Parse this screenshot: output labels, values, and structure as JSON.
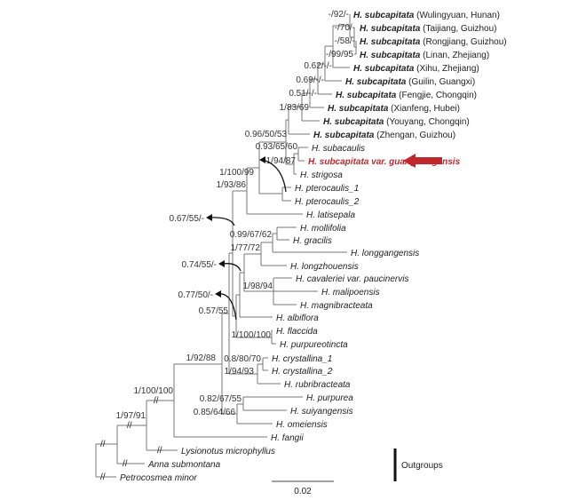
{
  "taxa": [
    {
      "name": "H. subcapitata",
      "loc": "(Wulingyuan, Hunan)",
      "bold": true
    },
    {
      "name": "H. subcapitata",
      "loc": "(Taijiang, Guizhou)",
      "bold": true
    },
    {
      "name": "H. subcapitata",
      "loc": "(Rongjiang, Guizhou)",
      "bold": true
    },
    {
      "name": "H. subcapitata",
      "loc": "(Linan, Zhejiang)",
      "bold": true
    },
    {
      "name": "H. subcapitata",
      "loc": "(Xihu, Zhejiang)",
      "bold": true
    },
    {
      "name": "H. subcapitata",
      "loc": "(Guilin, Guangxi)",
      "bold": true
    },
    {
      "name": "H. subcapitata",
      "loc": "(Fengjie, Chongqin)",
      "bold": true
    },
    {
      "name": "H. subcapitata",
      "loc": "(Xianfeng, Hubei)",
      "bold": true
    },
    {
      "name": "H. subcapitata",
      "loc": "(Youyang, Chongqin)",
      "bold": true
    },
    {
      "name": "H. subcapitata",
      "loc": "(Zhengan, Guizhou)",
      "bold": true
    },
    {
      "name": "H. subacaulis",
      "loc": ""
    },
    {
      "name": "H. subcapitata var. guangdongensis",
      "loc": "",
      "highlight": true
    },
    {
      "name": "H. strigosa",
      "loc": ""
    },
    {
      "name": "H. pterocaulis_1",
      "loc": ""
    },
    {
      "name": "H. pterocaulis_2",
      "loc": ""
    },
    {
      "name": "H. latisepala",
      "loc": ""
    },
    {
      "name": "H. mollifolia",
      "loc": ""
    },
    {
      "name": "H. gracilis",
      "loc": ""
    },
    {
      "name": "H. longgangensis",
      "loc": ""
    },
    {
      "name": "H. longzhouensis",
      "loc": ""
    },
    {
      "name": "H. cavaleriei var. paucinervis",
      "loc": ""
    },
    {
      "name": "H. malipoensis",
      "loc": ""
    },
    {
      "name": "H. magnibracteata",
      "loc": ""
    },
    {
      "name": "H. albiflora",
      "loc": ""
    },
    {
      "name": "H. flaccida",
      "loc": ""
    },
    {
      "name": "H. purpureotincta",
      "loc": ""
    },
    {
      "name": "H. crystallina_1",
      "loc": ""
    },
    {
      "name": "H. crystallina_2",
      "loc": ""
    },
    {
      "name": "H. rubribracteata",
      "loc": ""
    },
    {
      "name": "H. purpurea",
      "loc": ""
    },
    {
      "name": "H. suiyangensis",
      "loc": ""
    },
    {
      "name": "H. omeiensis",
      "loc": ""
    },
    {
      "name": "H. fangii",
      "loc": ""
    },
    {
      "name": "Lysionotus microphyllus",
      "loc": ""
    },
    {
      "name": "Anna submontana",
      "loc": ""
    },
    {
      "name": "Petrocosmea minor",
      "loc": ""
    }
  ],
  "supports": [
    "-/92/-",
    "-/70/-",
    "-/58/-",
    "-/99/95",
    "0.62/-/-",
    "0.69/-/-",
    "0.51/-/-",
    "1/83/69",
    "0.96/50/53",
    "0.93/65/60",
    "1/94/87",
    "1/100/99",
    "1/93/86",
    "0.99/67/62",
    "1/77/72",
    "1/98/94",
    "0.57/55",
    "1/100/100",
    "0.8/80/70",
    "1/94/93",
    "0.82/67/55",
    "0.85/64/66",
    "1/92/88",
    "1/100/100",
    "1/97/91"
  ],
  "alt_supports": [
    "0.67/55/-",
    "0.74/55/-",
    "0.77/50/-"
  ],
  "outgroups_label": "Outgroups",
  "scale_label": "0.02",
  "colors": {
    "highlight": "#c0282d",
    "branch": "#777777"
  }
}
